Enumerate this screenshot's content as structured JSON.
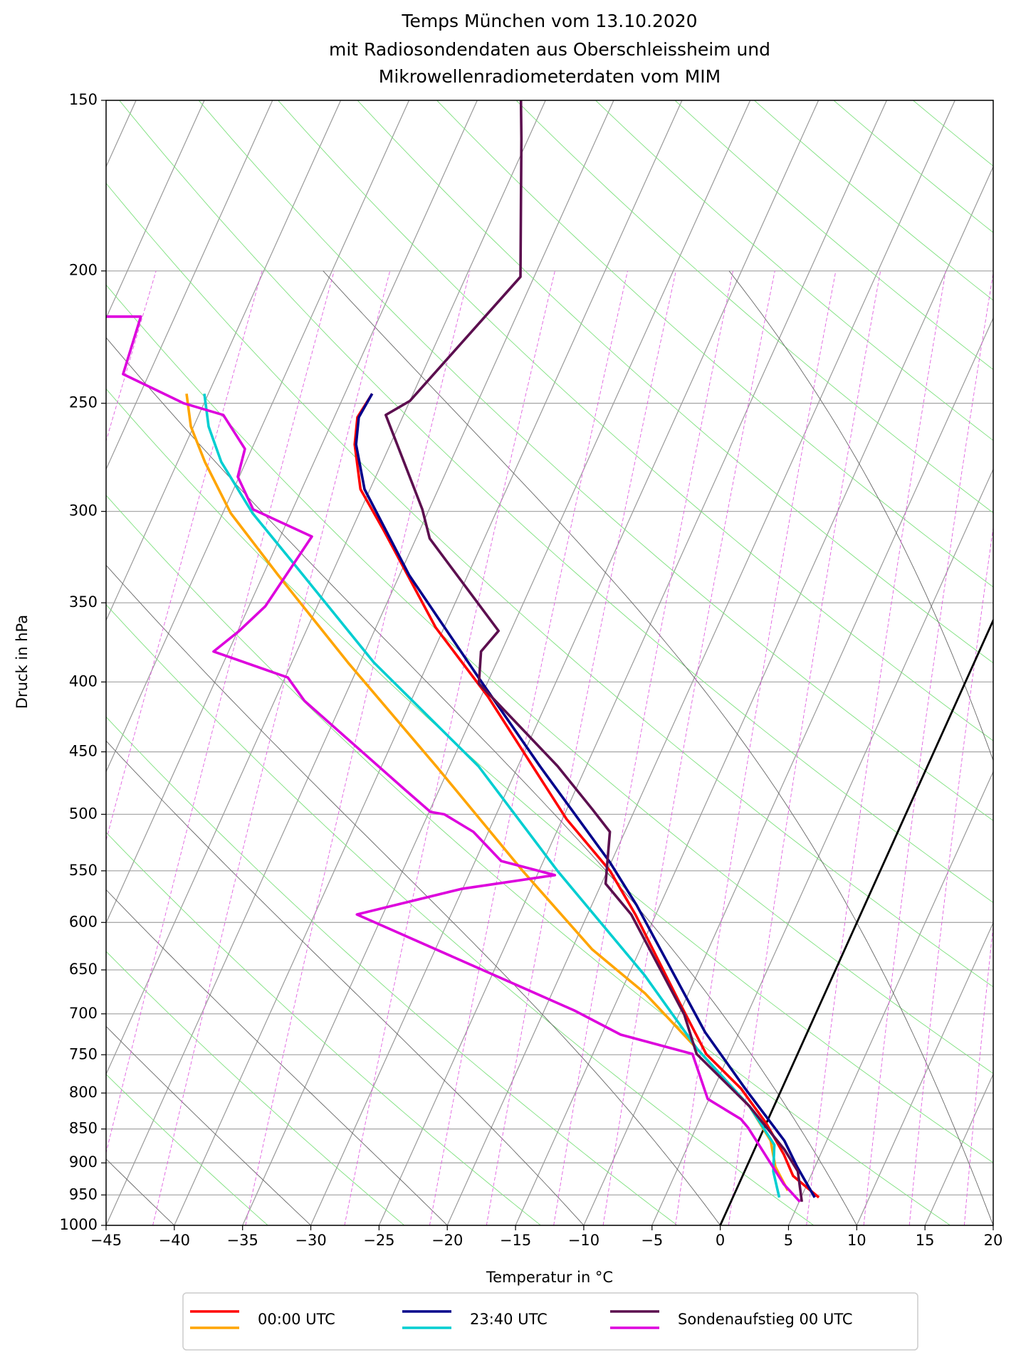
{
  "chart_data": {
    "type": "skewt",
    "title": [
      "Temps München vom 13.10.2020",
      "mit Radiosondendaten aus Oberschleissheim und",
      "Mikrowellenradiometerdaten vom MIM"
    ],
    "xlabel": "Temperatur in °C",
    "ylabel": "Druck in hPa",
    "xlim": [
      -45,
      20
    ],
    "ylim": [
      1000,
      150
    ],
    "log_y": true,
    "grid": true,
    "highlight_isotherm": 0,
    "xticks": [
      {
        "value": -45,
        "label": "−45"
      },
      {
        "value": -40,
        "label": "−40"
      },
      {
        "value": -35,
        "label": "−35"
      },
      {
        "value": -30,
        "label": "−30"
      },
      {
        "value": -25,
        "label": "−25"
      },
      {
        "value": -20,
        "label": "−20"
      },
      {
        "value": -15,
        "label": "−15"
      },
      {
        "value": -10,
        "label": "−10"
      },
      {
        "value": -5,
        "label": "−5"
      },
      0,
      5,
      10,
      15,
      20
    ],
    "yticks": [
      150,
      200,
      250,
      300,
      350,
      400,
      450,
      500,
      550,
      600,
      650,
      700,
      750,
      800,
      850,
      900,
      950,
      1000
    ],
    "series": [
      {
        "name": "00:00 UTC",
        "lines": [
          {
            "color": "#ff0000",
            "pressure": [
              954,
              920,
              887,
              842,
              794,
              749,
              686,
              592,
              550,
              504,
              410,
              365,
              310,
              289,
              268,
              256,
              246
            ],
            "values": [
              6.3,
              3.7,
              2.3,
              0.0,
              -3.0,
              -6.7,
              -10.4,
              -16.5,
              -19.8,
              -24.7,
              -34.5,
              -40.6,
              -47.6,
              -50.7,
              -52.6,
              -53.3,
              -53.0
            ]
          },
          {
            "color": "#ffa500",
            "pressure": [
              943,
              906,
              867,
              818,
              743,
              676,
              628,
              550,
              461,
              387,
              334,
              301,
              276,
              260,
              246
            ],
            "values": [
              3.8,
              2.1,
              0.9,
              -1.8,
              -7.5,
              -13.2,
              -18.5,
              -26.2,
              -36.0,
              -45.9,
              -53.9,
              -59.4,
              -63.0,
              -65.2,
              -66.6
            ]
          }
        ]
      },
      {
        "name": "23:40 UTC",
        "lines": [
          {
            "color": "#00008b",
            "pressure": [
              954,
              906,
              867,
              794,
              722,
              686,
              583,
              542,
              461,
              398,
              334,
              289,
              268,
              256,
              246
            ],
            "values": [
              6.0,
              3.7,
              1.9,
              -2.7,
              -7.5,
              -9.7,
              -16.7,
              -20.1,
              -28.4,
              -35.7,
              -44.3,
              -50.4,
              -52.5,
              -53.2,
              -53.0
            ]
          },
          {
            "color": "#00ced1",
            "pressure": [
              954,
              913,
              873,
              818,
              743,
              656,
              550,
              461,
              387,
              329,
              301,
              276,
              260,
              246
            ],
            "values": [
              3.4,
              2.1,
              1.3,
              -1.8,
              -7.5,
              -13.8,
              -23.65,
              -32.9,
              -44.0,
              -52.9,
              -57.8,
              -61.8,
              -63.9,
              -65.3
            ]
          }
        ]
      },
      {
        "name": "Sondenaufstieg 00 UTC",
        "lines": [
          {
            "color": "#5c0f4f",
            "pressure": [
              961,
              913,
              880,
              818,
              749,
              701,
              592,
              562,
              515,
              496,
              461,
              401,
              380,
              367,
              314,
              299,
              255,
              249,
              202,
              160,
              150
            ],
            "values": [
              5.2,
              3.9,
              2.2,
              -1.8,
              -7.4,
              -9.6,
              -16.8,
              -19.7,
              -21.1,
              -23.1,
              -27.1,
              -35.6,
              -36.5,
              -35.9,
              -44.0,
              -45.5,
              -51.3,
              -50.0,
              -46.0,
              -50.5,
              -51.8
            ]
          },
          {
            "color": "#dd00dd",
            "pressure": [
              961,
              933,
              848,
              836,
              808,
              749,
              725,
              696,
              592,
              567,
              554,
              541,
              515,
              500,
              498,
              479,
              413,
              397,
              380,
              367,
              352,
              313,
              299,
              283,
              270,
              255,
              250,
              238,
              216,
              216
            ],
            "values": [
              5.05,
              3.3,
              -1.2,
              -2.0,
              -5.1,
              -7.7,
              -13.6,
              -17.8,
              -36.9,
              -30.1,
              -23.7,
              -28.1,
              -31.1,
              -33.8,
              -34.9,
              -37.6,
              -47.8,
              -49.8,
              -56.1,
              -54.9,
              -53.8,
              -52.7,
              -57.9,
              -60.1,
              -60.5,
              -63.2,
              -66.5,
              -71.9,
              -72.5,
              -75.1
            ]
          }
        ]
      }
    ]
  }
}
